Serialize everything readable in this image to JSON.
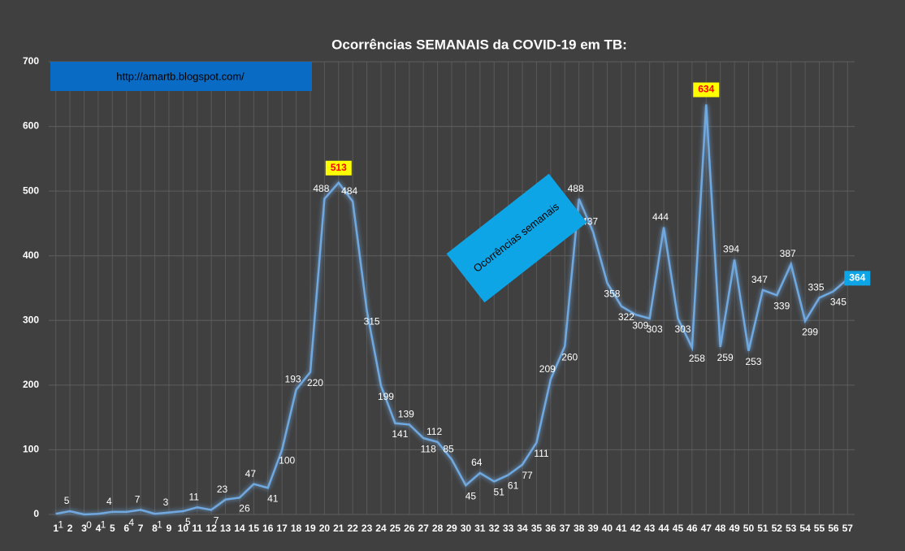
{
  "chart_data": {
    "type": "line",
    "title": "Ocorrências SEMANAIS da COVID-19 em TB:",
    "annotations": [
      "http://amartb.blogspot.com/",
      "Ocorrências semanais"
    ],
    "categories": [
      "1",
      "2",
      "3",
      "4",
      "5",
      "6",
      "7",
      "8",
      "9",
      "10",
      "11",
      "12",
      "13",
      "14",
      "15",
      "16",
      "17",
      "18",
      "19",
      "20",
      "21",
      "22",
      "23",
      "24",
      "25",
      "26",
      "27",
      "28",
      "29",
      "30",
      "31",
      "32",
      "33",
      "34",
      "35",
      "36",
      "37",
      "38",
      "39",
      "40",
      "41",
      "42",
      "43",
      "44",
      "45",
      "46",
      "47",
      "48",
      "49",
      "50",
      "51",
      "52",
      "53",
      "54",
      "55",
      "56",
      "57"
    ],
    "series": [
      {
        "name": "Ocorrências semanais",
        "color": "#6fa8e0",
        "values": [
          1,
          5,
          0,
          1,
          4,
          4,
          7,
          1,
          3,
          5,
          11,
          7,
          23,
          26,
          47,
          41,
          100,
          193,
          220,
          488,
          513,
          484,
          315,
          199,
          141,
          139,
          118,
          112,
          85,
          45,
          64,
          51,
          61,
          77,
          111,
          209,
          260,
          488,
          437,
          358,
          322,
          309,
          303,
          444,
          303,
          258,
          634,
          259,
          394,
          253,
          347,
          339,
          387,
          299,
          335,
          345,
          364
        ]
      }
    ],
    "ylim": [
      0,
      700
    ],
    "yticks": [
      0,
      100,
      200,
      300,
      400,
      500,
      600,
      700
    ],
    "grid": true
  }
}
